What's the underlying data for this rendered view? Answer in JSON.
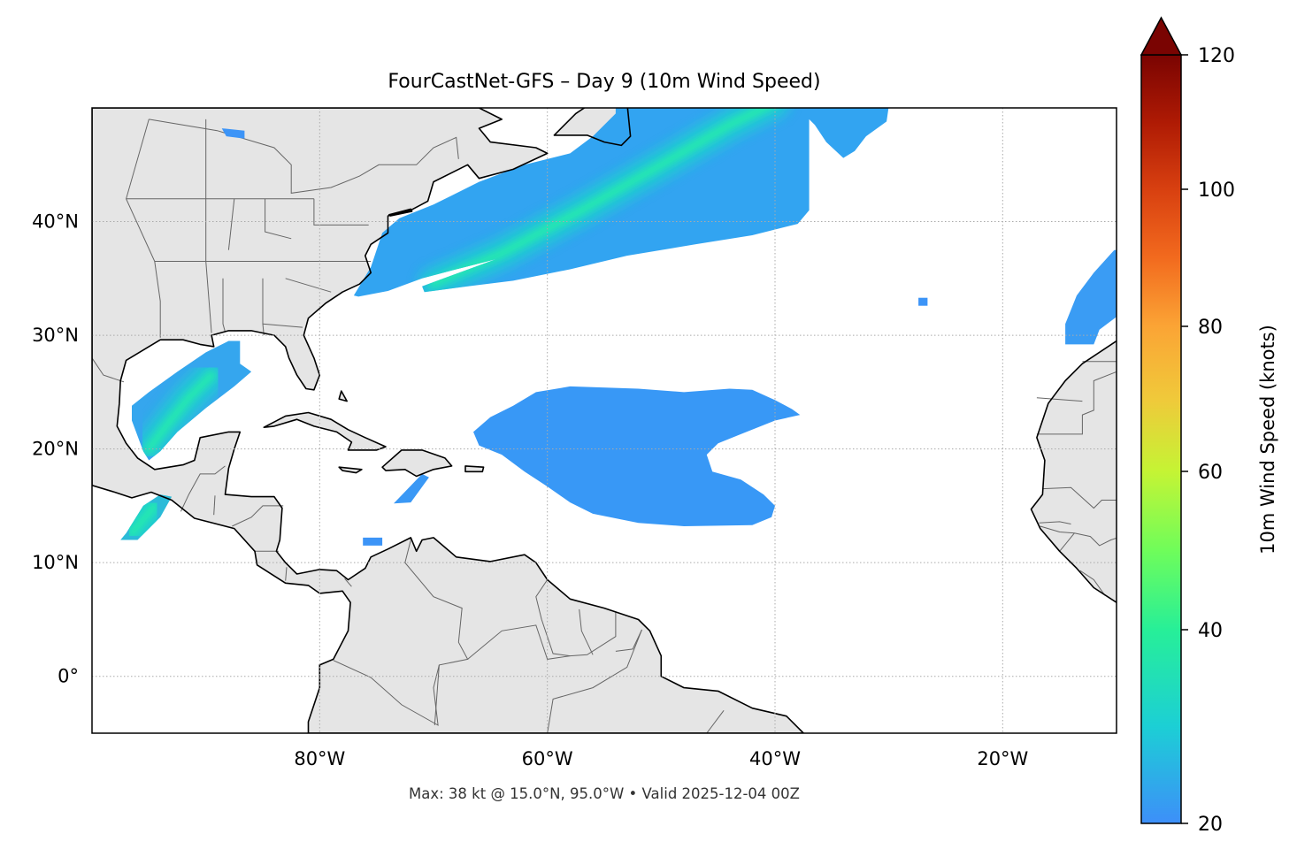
{
  "title": "FourCastNet-GFS – Day 9 (10m Wind Speed)",
  "footer": "Max: 38 kt @ 15.0°N, 95.0°W • Valid 2025-12-04 00Z",
  "map": {
    "extent": {
      "lon": [
        -100,
        -10
      ],
      "lat": [
        -5,
        50
      ]
    },
    "gridlines": "dotted",
    "land_color": "#e5e5e5",
    "coast_color": "#000000",
    "border_color": "#666666",
    "lon_ticks": [
      {
        "value": -80,
        "label": "80°W"
      },
      {
        "value": -60,
        "label": "60°W"
      },
      {
        "value": -40,
        "label": "40°W"
      },
      {
        "value": -20,
        "label": "20°W"
      }
    ],
    "lat_ticks": [
      {
        "value": 40,
        "label": "40°N"
      },
      {
        "value": 30,
        "label": "30°N"
      },
      {
        "value": 20,
        "label": "20°N"
      },
      {
        "value": 10,
        "label": "10°N"
      },
      {
        "value": 0,
        "label": "0°"
      }
    ]
  },
  "colorbar": {
    "label": "10m Wind Speed (knots)",
    "extend": "max",
    "range": [
      20,
      120
    ],
    "ticks": [
      {
        "value": 20,
        "label": "20"
      },
      {
        "value": 40,
        "label": "40"
      },
      {
        "value": 60,
        "label": "60"
      },
      {
        "value": 80,
        "label": "80"
      },
      {
        "value": 100,
        "label": "100"
      },
      {
        "value": 120,
        "label": "120"
      }
    ],
    "colors": [
      "#3d8ff9",
      "#1ccfd5",
      "#27ef98",
      "#6ffd5a",
      "#c5f434",
      "#f0c93a",
      "#fba435",
      "#f26a1e",
      "#d84010",
      "#ae1a04",
      "#7a0402"
    ]
  },
  "chart_data": {
    "type": "heatmap",
    "title": "FourCastNet-GFS – Day 9 (10m Wind Speed)",
    "variable": "10m Wind Speed (knots)",
    "max": {
      "value": 38,
      "unit": "kt",
      "lat": 15.0,
      "lon": -95.0
    },
    "valid": "2025-12-04 00Z"
  }
}
